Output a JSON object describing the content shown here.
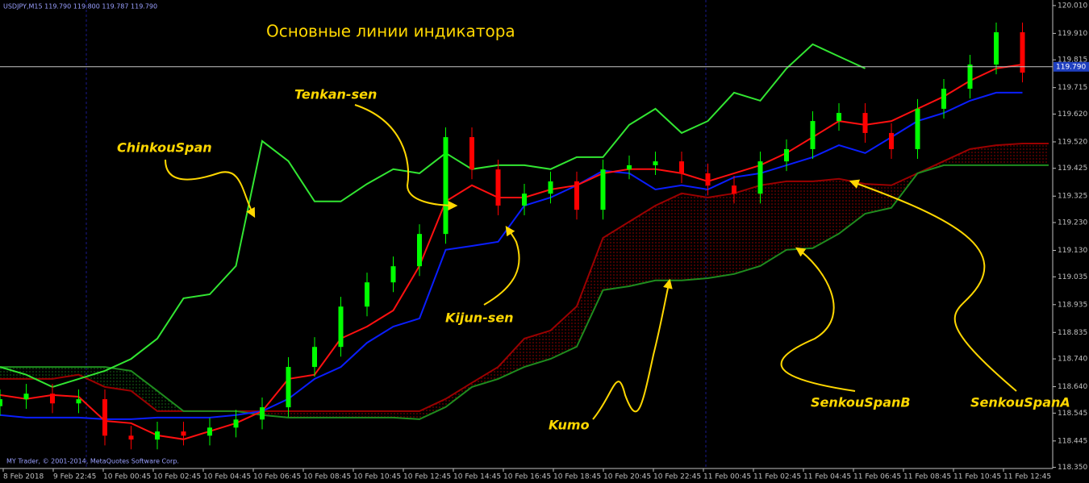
{
  "chart_data": {
    "type": "candlestick",
    "title": "Основные линии индикатора",
    "symbol_info": "USDJPY,M15 119.790 119.800 119.787 119.790",
    "copyright": "MY Trader, © 2001-2014, MetaQuotes Software Corp.",
    "kumo_label": "Kumo",
    "ylim": [
      118.346,
      120.03
    ],
    "yticks": [
      {
        "value": 120.01,
        "label": "120.010"
      },
      {
        "value": 119.91,
        "label": "119.910"
      },
      119.815,
      119.715,
      {
        "value": 119.62,
        "label": "119.620"
      },
      {
        "value": 119.52,
        "label": "119.520"
      },
      119.425,
      119.325,
      {
        "value": 119.23,
        "label": "119.230"
      },
      {
        "value": 119.13,
        "label": "119.130"
      },
      119.035,
      118.935,
      118.835,
      {
        "value": 118.74,
        "label": "118.740"
      },
      {
        "value": 118.64,
        "label": "118.640"
      },
      118.545,
      118.445,
      {
        "value": 118.35,
        "label": "118.350"
      }
    ],
    "current_price": {
      "value": 119.79,
      "label": "119.790"
    },
    "xlabels": [
      "8 Feb 2018",
      "9 Feb 22:45",
      "10 Feb 00:45",
      "10 Feb 02:45",
      "10 Feb 04:45",
      "10 Feb 06:45",
      "10 Feb 08:45",
      "10 Feb 10:45",
      "10 Feb 12:45",
      "10 Feb 14:45",
      "10 Feb 16:45",
      "10 Feb 18:45",
      "10 Feb 20:45",
      "10 Feb 22:45",
      "11 Feb 00:45",
      "11 Feb 02:45",
      "11 Feb 04:45",
      "11 Feb 06:45",
      "11 Feb 08:45",
      "11 Feb 10:45",
      "11 Feb 12:45"
    ],
    "candles": {
      "up_color": "#00ff00",
      "down_color": "#ff0000",
      "open": [
        118.57,
        118.595,
        118.615,
        118.58,
        118.595,
        118.464,
        118.45,
        118.479,
        118.464,
        118.493,
        118.522,
        118.566,
        118.711,
        118.783,
        118.928,
        119.015,
        119.073,
        119.189,
        119.537,
        119.421,
        119.291,
        119.334,
        119.378,
        119.276,
        119.421,
        119.436,
        119.45,
        119.407,
        119.363,
        119.334,
        119.45,
        119.494,
        119.595,
        119.624,
        119.552,
        119.494,
        119.639,
        119.711,
        119.798,
        119.914
      ],
      "high": [
        118.63,
        118.65,
        118.65,
        118.63,
        118.63,
        118.499,
        118.514,
        118.514,
        118.528,
        118.557,
        118.601,
        118.746,
        118.818,
        118.963,
        119.05,
        119.108,
        119.224,
        119.572,
        119.572,
        119.456,
        119.369,
        119.413,
        119.413,
        119.456,
        119.471,
        119.485,
        119.485,
        119.442,
        119.398,
        119.485,
        119.529,
        119.63,
        119.659,
        119.659,
        119.587,
        119.674,
        119.746,
        119.833,
        119.949,
        119.949
      ],
      "low": [
        118.535,
        118.56,
        118.545,
        118.545,
        118.429,
        118.415,
        118.415,
        118.429,
        118.429,
        118.458,
        118.487,
        118.531,
        118.676,
        118.748,
        118.893,
        118.98,
        119.038,
        119.154,
        119.386,
        119.256,
        119.256,
        119.299,
        119.241,
        119.241,
        119.386,
        119.401,
        119.372,
        119.328,
        119.299,
        119.299,
        119.415,
        119.459,
        119.56,
        119.517,
        119.459,
        119.459,
        119.604,
        119.676,
        119.763,
        119.734
      ],
      "close": [
        118.595,
        118.615,
        118.58,
        118.595,
        118.464,
        118.45,
        118.479,
        118.464,
        118.493,
        118.522,
        118.566,
        118.711,
        118.783,
        118.928,
        119.015,
        119.073,
        119.189,
        119.537,
        119.421,
        119.291,
        119.334,
        119.378,
        119.276,
        119.421,
        119.436,
        119.45,
        119.407,
        119.363,
        119.334,
        119.45,
        119.494,
        119.595,
        119.624,
        119.552,
        119.494,
        119.639,
        119.711,
        119.798,
        119.914,
        119.769
      ]
    },
    "series": [
      {
        "name": "SenkouSpanB",
        "color": "#9b0000",
        "values": [
          118.668,
          118.668,
          118.668,
          118.683,
          118.639,
          118.625,
          118.552,
          118.552,
          118.552,
          118.552,
          118.552,
          118.552,
          118.552,
          118.552,
          118.552,
          118.552,
          118.552,
          118.596,
          118.654,
          118.711,
          118.813,
          118.842,
          118.929,
          119.175,
          119.233,
          119.291,
          119.335,
          119.32,
          119.335,
          119.364,
          119.378,
          119.378,
          119.387,
          119.369,
          119.364,
          119.407,
          119.451,
          119.494,
          119.508,
          119.514,
          119.514
        ]
      },
      {
        "name": "SenkouSpanA",
        "color": "#1e8c1e",
        "values": [
          118.711,
          118.711,
          118.711,
          118.711,
          118.711,
          118.697,
          118.625,
          118.552,
          118.552,
          118.552,
          118.538,
          118.529,
          118.529,
          118.529,
          118.529,
          118.529,
          118.523,
          118.567,
          118.639,
          118.668,
          118.711,
          118.74,
          118.784,
          118.987,
          119.001,
          119.022,
          119.022,
          119.03,
          119.045,
          119.074,
          119.132,
          119.138,
          119.19,
          119.262,
          119.283,
          119.407,
          119.436,
          119.436,
          119.436,
          119.436,
          119.436
        ]
      },
      {
        "name": "ChinkouSpan",
        "color": "#32e632",
        "values": [
          118.711,
          118.683,
          118.639,
          118.668,
          118.697,
          118.74,
          118.813,
          118.958,
          118.972,
          119.074,
          119.523,
          119.451,
          119.306,
          119.306,
          119.369,
          119.422,
          119.407,
          119.48,
          119.422,
          119.436,
          119.436,
          119.422,
          119.465,
          119.465,
          119.581,
          119.639,
          119.552,
          119.595,
          119.697,
          119.668,
          119.784,
          119.871,
          119.827,
          119.784,
          null,
          null,
          null,
          null,
          null,
          null,
          null
        ]
      },
      {
        "name": "Kijun-sen",
        "color": "#0a1eff",
        "values": [
          118.538,
          118.529,
          118.529,
          118.529,
          118.523,
          118.523,
          118.529,
          118.529,
          118.529,
          118.538,
          118.552,
          118.596,
          118.668,
          118.711,
          118.798,
          118.856,
          118.885,
          119.132,
          119.146,
          119.161,
          119.291,
          119.32,
          119.364,
          119.416,
          119.407,
          119.349,
          119.364,
          119.349,
          119.393,
          119.407,
          119.436,
          119.465,
          119.508,
          119.48,
          119.537,
          119.595,
          119.624,
          119.668,
          119.697,
          119.697,
          null
        ]
      },
      {
        "name": "Tenkan-sen",
        "color": "#ff1010",
        "values": [
          118.61,
          118.596,
          118.61,
          118.604,
          118.517,
          118.509,
          118.465,
          118.451,
          118.48,
          118.509,
          118.552,
          118.668,
          118.683,
          118.813,
          118.856,
          118.914,
          119.074,
          119.306,
          119.364,
          119.32,
          119.32,
          119.349,
          119.364,
          119.407,
          119.422,
          119.422,
          119.407,
          119.378,
          119.407,
          119.436,
          119.48,
          119.537,
          119.595,
          119.581,
          119.595,
          119.639,
          119.683,
          119.74,
          119.784,
          119.798,
          null
        ]
      }
    ]
  }
}
